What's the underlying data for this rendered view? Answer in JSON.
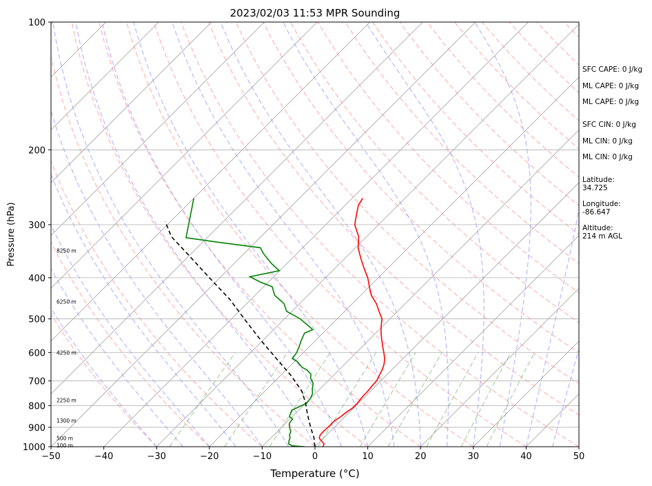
{
  "chart_data": {
    "type": "line",
    "subtype": "skew-t log-p",
    "title": "2023/02/03 11:53 MPR Sounding",
    "xlabel": "Temperature (°C)",
    "ylabel": "Pressure (hPa)",
    "xlim": [
      -50,
      50
    ],
    "ylim": [
      1000,
      100
    ],
    "y_scale": "log",
    "x_ticks": [
      "−50",
      "−40",
      "−30",
      "−20",
      "−10",
      "0",
      "10",
      "20",
      "30",
      "40",
      "50"
    ],
    "x_tick_values": [
      -50,
      -40,
      -30,
      -20,
      -10,
      0,
      10,
      20,
      30,
      40,
      50
    ],
    "y_ticks": [
      "100",
      "200",
      "300",
      "400",
      "500",
      "600",
      "700",
      "800",
      "900",
      "1000"
    ],
    "y_tick_values": [
      100,
      200,
      300,
      400,
      500,
      600,
      700,
      800,
      900,
      1000
    ],
    "grid": "horizontal at labeled pressures",
    "series": [
      {
        "color": "#ff0000",
        "points": [
          [
            1.5,
            1000
          ],
          [
            1.2,
            985
          ],
          [
            0.2,
            970
          ],
          [
            -0.8,
            955
          ],
          [
            -1.2,
            940
          ],
          [
            -1.3,
            920
          ],
          [
            -1.2,
            900
          ],
          [
            -1.2,
            870
          ],
          [
            -0.8,
            850
          ],
          [
            -0.6,
            830
          ],
          [
            -0.2,
            810
          ],
          [
            -0.2,
            790
          ],
          [
            -0.5,
            760
          ],
          [
            -0.5,
            740
          ],
          [
            -0.7,
            720
          ],
          [
            -0.8,
            700
          ],
          [
            -1.3,
            680
          ],
          [
            -1.8,
            660
          ],
          [
            -2.5,
            640
          ],
          [
            -3.5,
            620
          ],
          [
            -4.8,
            600
          ],
          [
            -6.2,
            580
          ],
          [
            -7.6,
            560
          ],
          [
            -9,
            540
          ],
          [
            -10.3,
            520
          ],
          [
            -11.5,
            500
          ],
          [
            -13.5,
            480
          ],
          [
            -15.5,
            460
          ],
          [
            -18,
            440
          ],
          [
            -20,
            420
          ],
          [
            -22,
            400
          ],
          [
            -24.5,
            380
          ],
          [
            -27,
            360
          ],
          [
            -29.5,
            340
          ],
          [
            -31.5,
            320
          ],
          [
            -33,
            310
          ],
          [
            -34.5,
            300
          ],
          [
            -35.5,
            290
          ],
          [
            -36.5,
            280
          ],
          [
            -37.5,
            270
          ],
          [
            -38,
            260
          ]
        ]
      },
      {
        "color": "#008000",
        "points": [
          [
            -2,
            1000
          ],
          [
            -4.5,
            995
          ],
          [
            -5.5,
            985
          ],
          [
            -6,
            970
          ],
          [
            -6.5,
            950
          ],
          [
            -7,
            940
          ],
          [
            -7.5,
            920
          ],
          [
            -8.5,
            900
          ],
          [
            -9.3,
            880
          ],
          [
            -9.5,
            860
          ],
          [
            -10.5,
            850
          ],
          [
            -10.8,
            840
          ],
          [
            -11.3,
            820
          ],
          [
            -10.8,
            810
          ],
          [
            -9.8,
            790
          ],
          [
            -10,
            770
          ],
          [
            -10.5,
            750
          ],
          [
            -11.5,
            730
          ],
          [
            -12.3,
            710
          ],
          [
            -13,
            700
          ],
          [
            -13.8,
            690
          ],
          [
            -14.5,
            675
          ],
          [
            -16,
            660
          ],
          [
            -17.5,
            650
          ],
          [
            -19.5,
            630
          ],
          [
            -21,
            620
          ],
          [
            -21.3,
            600
          ],
          [
            -22,
            580
          ],
          [
            -22.8,
            560
          ],
          [
            -23.5,
            540
          ],
          [
            -22.6,
            530
          ],
          [
            -24,
            520
          ],
          [
            -27,
            500
          ],
          [
            -31,
            480
          ],
          [
            -33,
            460
          ],
          [
            -36.3,
            440
          ],
          [
            -38.4,
            420
          ],
          [
            -41.4,
            410
          ],
          [
            -44.5,
            398
          ],
          [
            -40.1,
            385
          ],
          [
            -43,
            370
          ],
          [
            -46.5,
            350
          ],
          [
            -48,
            340
          ],
          [
            -57,
            330
          ],
          [
            -64,
            322
          ],
          [
            -70,
            260
          ]
        ]
      },
      {
        "color": "#000000",
        "dash": "6,4",
        "points": [
          [
            0,
            1000
          ],
          [
            -2,
            950
          ],
          [
            -4,
            910
          ],
          [
            -6,
            870
          ],
          [
            -8,
            830
          ],
          [
            -10,
            790
          ],
          [
            -13,
            740
          ],
          [
            -18,
            680
          ],
          [
            -24,
            620
          ],
          [
            -30,
            565
          ],
          [
            -37,
            505
          ],
          [
            -44,
            450
          ],
          [
            -52,
            400
          ],
          [
            -60,
            355
          ],
          [
            -67,
            320
          ],
          [
            -71,
            295
          ]
        ]
      }
    ],
    "height_labels": [
      {
        "text": "100 m",
        "p": 992
      },
      {
        "text": "500 m",
        "p": 955
      },
      {
        "text": "1300 m",
        "p": 868
      },
      {
        "text": "2250 m",
        "p": 777
      },
      {
        "text": "4250 m",
        "p": 600
      },
      {
        "text": "6250 m",
        "p": 455
      },
      {
        "text": "8250 m",
        "p": 345
      }
    ],
    "annotations": [
      "SFC CAPE: 0 J/kg",
      "ML CAPE: 0 J/kg",
      "ML CAPE: 0 J/kg",
      "SFC CIN: 0 J/kg",
      "ML CIN: 0 J/kg",
      "ML CIN: 0 J/kg",
      "Latitude:\n34.725",
      "Longitude:\n-86.647",
      "Altitude:\n214 m AGL"
    ],
    "colors": {
      "temperature": "#ff0000",
      "dewpoint": "#008000",
      "parcel": "#000000",
      "dry_adiabats": "#ff9999",
      "moist_adiabats": "#9999ff",
      "mixing_ratio": "#7fbf7f",
      "isotherms": "#a0a0a0"
    }
  }
}
